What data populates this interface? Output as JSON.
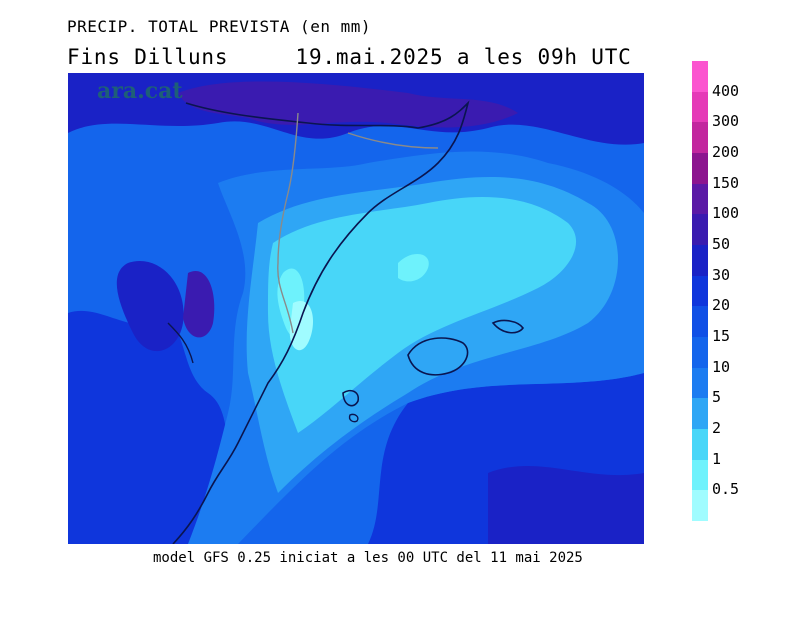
{
  "header": {
    "title": "PRECIP. TOTAL PREVISTA (en mm)",
    "subtitle_left": "Fins Dilluns",
    "subtitle_right": "19.mai.2025 a les 09h UTC"
  },
  "watermark": "ara.cat",
  "footer": {
    "caption": "model GFS 0.25 iniciat a les 00 UTC del 11 mai 2025"
  },
  "legend": {
    "levels": [
      "0.5",
      "1",
      "2",
      "5",
      "10",
      "15",
      "20",
      "30",
      "50",
      "100",
      "150",
      "200",
      "300",
      "400"
    ],
    "colors": [
      "#a0fcff",
      "#6ef2fc",
      "#48d6f8",
      "#2fa6f5",
      "#1c7cf1",
      "#1465ec",
      "#1050e6",
      "#0f36dc",
      "#1a22c6",
      "#3a1bb0",
      "#5b1aa6",
      "#8c158f",
      "#c2269e",
      "#e53ab7",
      "#fb55cf"
    ]
  },
  "map": {
    "palette": {
      "lightest": "#6ef2fc",
      "light": "#48d6f8",
      "mid": "#2fa6f5",
      "medium": "#1c7cf1",
      "deep": "#1465ec",
      "deeper": "#1050e6",
      "dark": "#0f36dc",
      "darker": "#1a22c6",
      "purple": "#3a1bb0"
    }
  }
}
